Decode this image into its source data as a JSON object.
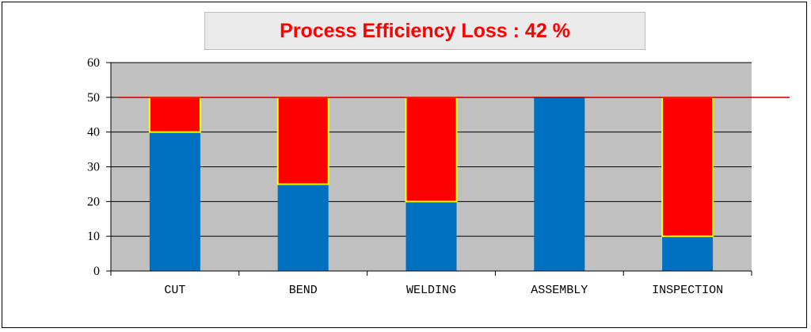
{
  "title": "Process Efficiency Loss : 42 %",
  "colors": {
    "plot_background": "#c0c0c0",
    "base": "#0070c0",
    "loss": "#ff0000",
    "loss_border": "#ffff00",
    "target_line": "#c00000",
    "title_text": "#ff0000"
  },
  "chart_data": {
    "type": "bar",
    "stacked": true,
    "categories": [
      "CUT",
      "BEND",
      "WELDING",
      "ASSEMBLY",
      "INSPECTION"
    ],
    "series": [
      {
        "values": [
          40,
          25,
          20,
          50,
          10
        ]
      },
      {
        "values": [
          10,
          25,
          30,
          0,
          40
        ]
      }
    ],
    "target": 50,
    "ylim": [
      0,
      60
    ],
    "yticks": [
      0,
      10,
      20,
      30,
      40,
      50,
      60
    ],
    "grid": true
  }
}
